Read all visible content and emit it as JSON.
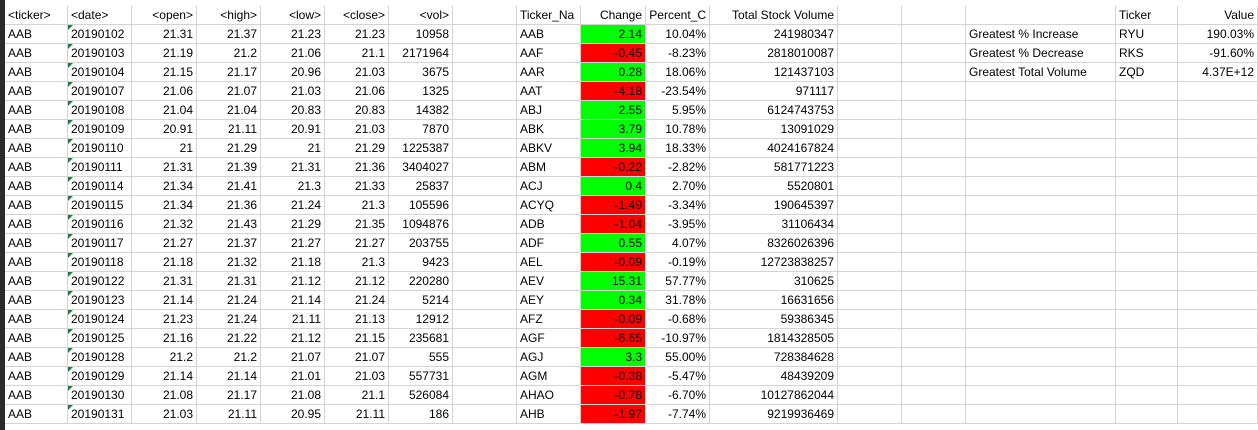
{
  "headers": {
    "ticker": "<ticker>",
    "date": "<date>",
    "open": "<open>",
    "high": "<high>",
    "low": "<low>",
    "close": "<close>",
    "vol": "<vol>",
    "ticker_name": "Ticker_Na",
    "change": "Change",
    "percent": "Percent_C",
    "total_volume": "Total Stock Volume",
    "ticker2": "Ticker",
    "value": "Value"
  },
  "rows": [
    {
      "ticker": "AAB",
      "date": "20190102",
      "open": "21.31",
      "high": "21.37",
      "low": "21.23",
      "close": "21.23",
      "vol": "10958",
      "name": "AAB",
      "change": "2.14",
      "status": "positive",
      "percent": "10.04%",
      "total": "241980347"
    },
    {
      "ticker": "AAB",
      "date": "20190103",
      "open": "21.19",
      "high": "21.2",
      "low": "21.06",
      "close": "21.1",
      "vol": "2171964",
      "name": "AAF",
      "change": "-0.45",
      "status": "negative",
      "percent": "-8.23%",
      "total": "2818010087"
    },
    {
      "ticker": "AAB",
      "date": "20190104",
      "open": "21.15",
      "high": "21.17",
      "low": "20.96",
      "close": "21.03",
      "vol": "3675",
      "name": "AAR",
      "change": "0.28",
      "status": "positive",
      "percent": "18.06%",
      "total": "121437103"
    },
    {
      "ticker": "AAB",
      "date": "20190107",
      "open": "21.06",
      "high": "21.07",
      "low": "21.03",
      "close": "21.06",
      "vol": "1325",
      "name": "AAT",
      "change": "-4.18",
      "status": "negative",
      "percent": "-23.54%",
      "total": "971117"
    },
    {
      "ticker": "AAB",
      "date": "20190108",
      "open": "21.04",
      "high": "21.04",
      "low": "20.83",
      "close": "20.83",
      "vol": "14382",
      "name": "ABJ",
      "change": "2.55",
      "status": "positive",
      "percent": "5.95%",
      "total": "6124743753"
    },
    {
      "ticker": "AAB",
      "date": "20190109",
      "open": "20.91",
      "high": "21.11",
      "low": "20.91",
      "close": "21.03",
      "vol": "7870",
      "name": "ABK",
      "change": "3.79",
      "status": "positive",
      "percent": "10.78%",
      "total": "13091029"
    },
    {
      "ticker": "AAB",
      "date": "20190110",
      "open": "21",
      "high": "21.29",
      "low": "21",
      "close": "21.29",
      "vol": "1225387",
      "name": "ABKV",
      "change": "3.94",
      "status": "positive",
      "percent": "18.33%",
      "total": "4024167824"
    },
    {
      "ticker": "AAB",
      "date": "20190111",
      "open": "21.31",
      "high": "21.39",
      "low": "21.31",
      "close": "21.36",
      "vol": "3404027",
      "name": "ABM",
      "change": "-0.22",
      "status": "negative",
      "percent": "-2.82%",
      "total": "581771223"
    },
    {
      "ticker": "AAB",
      "date": "20190114",
      "open": "21.34",
      "high": "21.41",
      "low": "21.3",
      "close": "21.33",
      "vol": "25837",
      "name": "ACJ",
      "change": "0.4",
      "status": "positive",
      "percent": "2.70%",
      "total": "5520801"
    },
    {
      "ticker": "AAB",
      "date": "20190115",
      "open": "21.34",
      "high": "21.36",
      "low": "21.24",
      "close": "21.3",
      "vol": "105596",
      "name": "ACYQ",
      "change": "-1.49",
      "status": "negative",
      "percent": "-3.34%",
      "total": "190645397"
    },
    {
      "ticker": "AAB",
      "date": "20190116",
      "open": "21.32",
      "high": "21.43",
      "low": "21.29",
      "close": "21.35",
      "vol": "1094876",
      "name": "ADB",
      "change": "-1.04",
      "status": "negative",
      "percent": "-3.95%",
      "total": "31106434"
    },
    {
      "ticker": "AAB",
      "date": "20190117",
      "open": "21.27",
      "high": "21.37",
      "low": "21.27",
      "close": "21.27",
      "vol": "203755",
      "name": "ADF",
      "change": "0.55",
      "status": "positive",
      "percent": "4.07%",
      "total": "8326026396"
    },
    {
      "ticker": "AAB",
      "date": "20190118",
      "open": "21.18",
      "high": "21.32",
      "low": "21.18",
      "close": "21.3",
      "vol": "9423",
      "name": "AEL",
      "change": "-0.09",
      "status": "negative",
      "percent": "-0.19%",
      "total": "12723838257"
    },
    {
      "ticker": "AAB",
      "date": "20190122",
      "open": "21.31",
      "high": "21.31",
      "low": "21.12",
      "close": "21.12",
      "vol": "220280",
      "name": "AEV",
      "change": "15.31",
      "status": "positive",
      "percent": "57.77%",
      "total": "310625"
    },
    {
      "ticker": "AAB",
      "date": "20190123",
      "open": "21.14",
      "high": "21.24",
      "low": "21.14",
      "close": "21.24",
      "vol": "5214",
      "name": "AEY",
      "change": "0.34",
      "status": "positive",
      "percent": "31.78%",
      "total": "16631656"
    },
    {
      "ticker": "AAB",
      "date": "20190124",
      "open": "21.23",
      "high": "21.24",
      "low": "21.11",
      "close": "21.13",
      "vol": "12912",
      "name": "AFZ",
      "change": "-0.09",
      "status": "negative",
      "percent": "-0.68%",
      "total": "59386345"
    },
    {
      "ticker": "AAB",
      "date": "20190125",
      "open": "21.16",
      "high": "21.22",
      "low": "21.12",
      "close": "21.15",
      "vol": "235681",
      "name": "AGF",
      "change": "-6.65",
      "status": "negative",
      "percent": "-10.97%",
      "total": "1814328505"
    },
    {
      "ticker": "AAB",
      "date": "20190128",
      "open": "21.2",
      "high": "21.2",
      "low": "21.07",
      "close": "21.07",
      "vol": "555",
      "name": "AGJ",
      "change": "3.3",
      "status": "positive",
      "percent": "55.00%",
      "total": "728384628"
    },
    {
      "ticker": "AAB",
      "date": "20190129",
      "open": "21.14",
      "high": "21.14",
      "low": "21.01",
      "close": "21.03",
      "vol": "557731",
      "name": "AGM",
      "change": "-0.38",
      "status": "negative",
      "percent": "-5.47%",
      "total": "48439209"
    },
    {
      "ticker": "AAB",
      "date": "20190130",
      "open": "21.08",
      "high": "21.17",
      "low": "21.08",
      "close": "21.1",
      "vol": "526084",
      "name": "AHAO",
      "change": "-0.78",
      "status": "negative",
      "percent": "-6.70%",
      "total": "10127862044"
    },
    {
      "ticker": "AAB",
      "date": "20190131",
      "open": "21.03",
      "high": "21.11",
      "low": "20.95",
      "close": "21.11",
      "vol": "186",
      "name": "AHB",
      "change": "-1.97",
      "status": "negative",
      "percent": "-7.74%",
      "total": "9219936469"
    }
  ],
  "summary": [
    {
      "label": "Greatest % Increase",
      "ticker": "RYU",
      "value": "190.03%"
    },
    {
      "label": "Greatest % Decrease",
      "ticker": "RKS",
      "value": "-91.60%"
    },
    {
      "label": "Greatest Total Volume",
      "ticker": "ZQD",
      "value": "4.37E+12"
    }
  ],
  "colors": {
    "positive": "#00ff00",
    "negative": "#ff0000",
    "gridline": "#d4d4d4",
    "error_indicator": "#1e7b3a"
  }
}
